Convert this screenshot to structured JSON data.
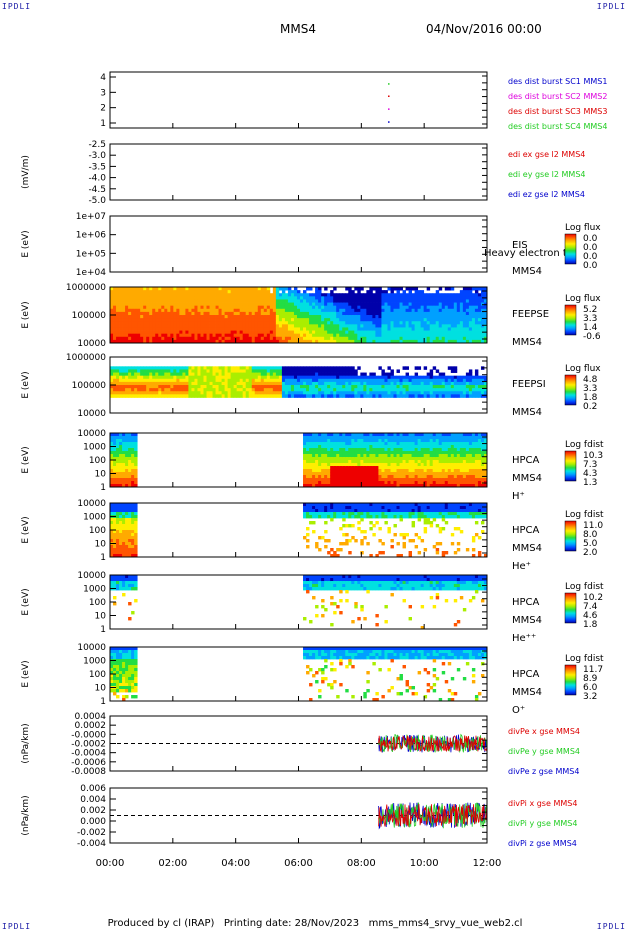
{
  "corners": {
    "tl": "IPDLI",
    "tr": "IPDLI",
    "bl": "IPDLI",
    "br": "IPDLI"
  },
  "header": {
    "spacecraft": "MMS4",
    "datetime": "04/Nov/2016 00:00"
  },
  "footer": {
    "text": "Produced by cl (IRAP)   Printing date: 28/Nov/2023   mms_mms4_srvy_vue_web2.cl"
  },
  "colors": {
    "blue": "#0000cc",
    "magenta": "#dd00dd",
    "red": "#dd0000",
    "green": "#22cc22",
    "frame": "#000000"
  },
  "chart_data": {
    "type": "heatmap",
    "xaxis": {
      "ticks": [
        "00:00",
        "02:00",
        "04:00",
        "06:00",
        "08:00",
        "10:00",
        "12:00"
      ],
      "range_hours": [
        0,
        12
      ]
    },
    "panels": [
      {
        "id": "burst",
        "kind": "lines",
        "ylabel": "",
        "ticks": [
          "4",
          "3",
          "2",
          "1"
        ],
        "legend": [
          {
            "text": "des dist burst SC1 MMS1",
            "color": "#0000cc"
          },
          {
            "text": "des dist burst SC2 MMS2",
            "color": "#dd00dd"
          },
          {
            "text": "des dist burst SC3 MMS3",
            "color": "#dd0000"
          },
          {
            "text": "des dist burst SC4 MMS4",
            "color": "#22cc22"
          }
        ]
      },
      {
        "id": "edi",
        "kind": "lines",
        "ylabel": "(mV/m)",
        "ticks": [
          "-2.5",
          "-3.0",
          "-3.5",
          "-4.0",
          "-4.5",
          "-5.0"
        ],
        "legend": [
          {
            "text": "edi ex gse l2 MMS4",
            "color": "#dd0000"
          },
          {
            "text": "edi ey gse l2 MMS4",
            "color": "#22cc22"
          },
          {
            "text": "edi ez gse l2 MMS4",
            "color": "#0000cc"
          }
        ]
      },
      {
        "id": "eis",
        "kind": "spectrogram",
        "ylabel": "E (eV)",
        "ticks": [
          "1e+07",
          "1e+06",
          "1e+05",
          "1e+04"
        ],
        "labels": [
          "EIS",
          "MMS4"
        ],
        "overlay": "Heavy electron to",
        "cbar_title": "Log flux",
        "cbar_ticks": [
          "0.0",
          "0.0",
          "0.0",
          "0.0"
        ]
      },
      {
        "id": "feepse",
        "kind": "spectrogram",
        "ylabel": "E (eV)",
        "ticks": [
          "1000000",
          "100000",
          "10000"
        ],
        "labels": [
          "FEEPSE",
          "MMS4"
        ],
        "cbar_title": "Log flux",
        "cbar_ticks": [
          "5.2",
          "3.3",
          "1.4",
          "-0.6"
        ]
      },
      {
        "id": "feepsi",
        "kind": "spectrogram",
        "ylabel": "E (eV)",
        "ticks": [
          "1000000",
          "100000",
          "10000"
        ],
        "labels": [
          "FEEPSI",
          "MMS4"
        ],
        "cbar_title": "Log flux",
        "cbar_ticks": [
          "4.8",
          "3.3",
          "1.8",
          "0.2"
        ]
      },
      {
        "id": "hpca_h",
        "kind": "spectrogram",
        "ylabel": "E (eV)",
        "ticks": [
          "10000",
          "1000",
          "100",
          "10",
          "1"
        ],
        "labels": [
          "HPCA",
          "MMS4",
          "H⁺"
        ],
        "cbar_title": "Log fdist",
        "cbar_ticks": [
          "10.3",
          "7.3",
          "4.3",
          "1.3"
        ]
      },
      {
        "id": "hpca_he",
        "kind": "spectrogram",
        "ylabel": "E (eV)",
        "ticks": [
          "10000",
          "1000",
          "100",
          "10",
          "1"
        ],
        "labels": [
          "HPCA",
          "MMS4",
          "He⁺"
        ],
        "cbar_title": "Log fdist",
        "cbar_ticks": [
          "11.0",
          "8.0",
          "5.0",
          "2.0"
        ]
      },
      {
        "id": "hpca_hepp",
        "kind": "spectrogram",
        "ylabel": "E (eV)",
        "ticks": [
          "10000",
          "1000",
          "100",
          "10",
          "1"
        ],
        "labels": [
          "HPCA",
          "MMS4",
          "He⁺⁺"
        ],
        "cbar_title": "Log fdist",
        "cbar_ticks": [
          "10.2",
          "7.4",
          "4.6",
          "1.8"
        ]
      },
      {
        "id": "hpca_o",
        "kind": "spectrogram",
        "ylabel": "E (eV)",
        "ticks": [
          "10000",
          "1000",
          "100",
          "10",
          "1"
        ],
        "labels": [
          "HPCA",
          "MMS4",
          "O⁺"
        ],
        "cbar_title": "Log fdist",
        "cbar_ticks": [
          "11.7",
          "8.9",
          "6.0",
          "3.2"
        ]
      },
      {
        "id": "divpe",
        "kind": "lines",
        "ylabel": "(nPa/km)",
        "ticks": [
          "0.0004",
          "0.0002",
          "-0.0000",
          "-0.0002",
          "-0.0004",
          "-0.0006",
          "-0.0008"
        ],
        "legend": [
          {
            "text": "divPe x gse MMS4",
            "color": "#dd0000"
          },
          {
            "text": "divPe y gse MMS4",
            "color": "#22cc22"
          },
          {
            "text": "divPe z gse MMS4",
            "color": "#0000cc"
          }
        ]
      },
      {
        "id": "divpi",
        "kind": "lines",
        "ylabel": "(nPa/km)",
        "ticks": [
          "0.006",
          "0.004",
          "0.002",
          "0.000",
          "-0.002",
          "-0.004"
        ],
        "legend": [
          {
            "text": "divPi x gse MMS4",
            "color": "#dd0000"
          },
          {
            "text": "divPi y gse MMS4",
            "color": "#22cc22"
          },
          {
            "text": "divPi z gse MMS4",
            "color": "#0000cc"
          }
        ]
      }
    ]
  }
}
